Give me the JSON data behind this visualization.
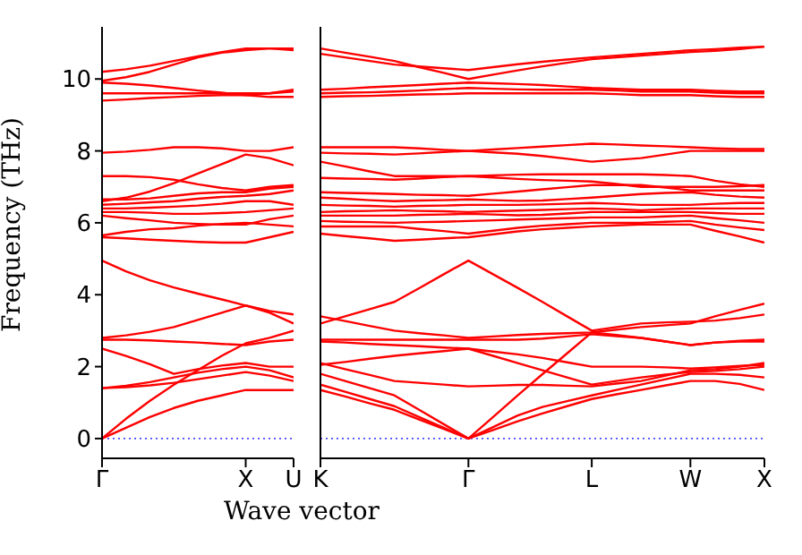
{
  "chart_data": [
    {
      "type": "line",
      "ylabel": "Frequency (THz)",
      "ylim": [
        -0.55,
        11.45
      ],
      "yticks": [
        0,
        2,
        4,
        6,
        8,
        10
      ],
      "marker": "none",
      "line_style": "solid",
      "ref_lines": [
        {
          "axis": "y",
          "value": 0,
          "label": null,
          "color": "#0000ff",
          "line_style": "dotted"
        }
      ],
      "categories": [
        "Γ",
        null,
        null,
        null,
        null,
        null,
        "X",
        null,
        "U"
      ],
      "series": [
        {
          "color": "#ff0000",
          "values": [
            0,
            0.3,
            0.6,
            0.85,
            1.05,
            1.2,
            1.35,
            1.35,
            1.35
          ]
        },
        {
          "color": "#ff0000",
          "values": [
            0,
            0.55,
            1.05,
            1.5,
            1.9,
            2.3,
            2.65,
            2.8,
            3.0
          ]
        },
        {
          "color": "#ff0000",
          "values": [
            1.4,
            1.43,
            1.48,
            1.55,
            1.65,
            1.75,
            1.85,
            1.75,
            1.6
          ]
        },
        {
          "color": "#ff0000",
          "values": [
            1.4,
            1.47,
            1.57,
            1.7,
            1.83,
            1.93,
            2.0,
            1.9,
            1.7
          ]
        },
        {
          "color": "#ff0000",
          "values": [
            2.5,
            2.3,
            2.07,
            1.8,
            1.93,
            2.03,
            2.1,
            2.0,
            2.0
          ]
        },
        {
          "color": "#ff0000",
          "values": [
            2.75,
            2.75,
            2.73,
            2.7,
            2.67,
            2.63,
            2.6,
            2.7,
            2.75
          ]
        },
        {
          "color": "#ff0000",
          "values": [
            2.8,
            2.87,
            2.97,
            3.1,
            3.3,
            3.5,
            3.7,
            3.5,
            3.2
          ]
        },
        {
          "color": "#ff0000",
          "values": [
            4.95,
            4.65,
            4.4,
            4.2,
            4.03,
            3.87,
            3.7,
            3.55,
            3.45
          ]
        },
        {
          "color": "#ff0000",
          "values": [
            5.6,
            5.57,
            5.53,
            5.5,
            5.47,
            5.45,
            5.45,
            5.6,
            5.75
          ]
        },
        {
          "color": "#ff0000",
          "values": [
            5.65,
            5.75,
            5.82,
            5.85,
            5.92,
            5.97,
            6.0,
            5.95,
            5.9
          ]
        },
        {
          "color": "#ff0000",
          "values": [
            6.2,
            6.13,
            6.07,
            6.0,
            5.97,
            5.95,
            5.95,
            6.1,
            6.2
          ]
        },
        {
          "color": "#ff0000",
          "values": [
            6.3,
            6.3,
            6.28,
            6.25,
            6.25,
            6.27,
            6.3,
            6.35,
            6.4
          ]
        },
        {
          "color": "#ff0000",
          "values": [
            6.4,
            6.4,
            6.42,
            6.45,
            6.48,
            6.53,
            6.6,
            6.6,
            6.5
          ]
        },
        {
          "color": "#ff0000",
          "values": [
            6.5,
            6.53,
            6.57,
            6.6,
            6.67,
            6.72,
            6.75,
            6.8,
            6.9
          ]
        },
        {
          "color": "#ff0000",
          "values": [
            6.65,
            6.65,
            6.68,
            6.75,
            6.82,
            6.85,
            6.85,
            6.95,
            7.0
          ]
        },
        {
          "color": "#ff0000",
          "values": [
            7.3,
            7.3,
            7.27,
            7.2,
            7.07,
            6.97,
            6.9,
            7.0,
            7.05
          ]
        },
        {
          "color": "#ff0000",
          "values": [
            6.6,
            6.7,
            6.87,
            7.1,
            7.37,
            7.63,
            7.9,
            7.8,
            7.6
          ]
        },
        {
          "color": "#ff0000",
          "values": [
            7.95,
            7.98,
            8.03,
            8.1,
            8.1,
            8.07,
            8.0,
            8.0,
            8.1
          ]
        },
        {
          "color": "#ff0000",
          "values": [
            9.4,
            9.43,
            9.47,
            9.5,
            9.53,
            9.55,
            9.55,
            9.5,
            9.5
          ]
        },
        {
          "color": "#ff0000",
          "values": [
            9.6,
            9.6,
            9.6,
            9.6,
            9.6,
            9.6,
            9.6,
            9.6,
            9.65
          ]
        },
        {
          "color": "#ff0000",
          "values": [
            9.9,
            9.87,
            9.82,
            9.75,
            9.68,
            9.62,
            9.55,
            9.6,
            9.7
          ]
        },
        {
          "color": "#ff0000",
          "values": [
            10.2,
            10.27,
            10.37,
            10.5,
            10.63,
            10.75,
            10.85,
            10.85,
            10.8
          ]
        },
        {
          "color": "#ff0000",
          "values": [
            9.95,
            10.05,
            10.2,
            10.4,
            10.6,
            10.73,
            10.8,
            10.85,
            10.85
          ]
        }
      ]
    },
    {
      "type": "line",
      "xlabel": "Wave vector",
      "ylim": [
        -0.55,
        11.45
      ],
      "yticks": [
        0,
        2,
        4,
        6,
        8,
        10
      ],
      "tick_labels": "x",
      "marker": "none",
      "line_style": "solid",
      "ref_lines": [
        {
          "axis": "y",
          "value": 0,
          "label": null,
          "color": "#0000ff",
          "line_style": "dotted"
        }
      ],
      "categories": [
        "K",
        null,
        null,
        null,
        null,
        null,
        "Γ",
        null,
        null,
        null,
        null,
        "L",
        null,
        null,
        null,
        "W",
        null,
        null,
        "X"
      ],
      "series": [
        {
          "color": "#ff0000",
          "values": [
            1.35,
            1.17,
            0.98,
            0.8,
            0.53,
            0.27,
            0,
            0.24,
            0.48,
            0.7,
            0.9,
            1.1,
            1.23,
            1.35,
            1.48,
            1.6,
            1.6,
            1.52,
            1.35
          ]
        },
        {
          "color": "#ff0000",
          "values": [
            1.5,
            1.3,
            1.1,
            0.9,
            0.6,
            0.3,
            0,
            0.32,
            0.64,
            0.88,
            1.04,
            1.2,
            1.35,
            1.5,
            1.65,
            1.8,
            1.8,
            1.77,
            1.7
          ]
        },
        {
          "color": "#ff0000",
          "values": [
            1.8,
            1.6,
            1.4,
            1.2,
            0.8,
            0.4,
            0,
            0.6,
            1.2,
            1.79,
            2.37,
            2.95,
            2.88,
            2.8,
            2.7,
            2.6,
            2.67,
            2.72,
            2.75
          ]
        },
        {
          "color": "#ff0000",
          "values": [
            2.1,
            1.93,
            1.77,
            1.6,
            1.55,
            1.5,
            1.45,
            1.47,
            1.49,
            1.49,
            1.47,
            1.45,
            1.53,
            1.6,
            1.75,
            1.9,
            1.93,
            2.0,
            2.1
          ]
        },
        {
          "color": "#ff0000",
          "values": [
            2.05,
            2.13,
            2.22,
            2.3,
            2.37,
            2.43,
            2.5,
            2.3,
            2.1,
            1.9,
            1.7,
            1.5,
            1.6,
            1.7,
            1.78,
            1.85,
            1.88,
            1.93,
            2.0
          ]
        },
        {
          "color": "#ff0000",
          "values": [
            2.7,
            2.67,
            2.63,
            2.6,
            2.57,
            2.53,
            2.5,
            2.42,
            2.34,
            2.24,
            2.12,
            2.0,
            2.0,
            2.0,
            1.98,
            1.95,
            1.98,
            2.02,
            2.05
          ]
        },
        {
          "color": "#ff0000",
          "values": [
            2.75,
            2.75,
            2.75,
            2.75,
            2.75,
            2.75,
            2.75,
            2.75,
            2.75,
            2.78,
            2.84,
            2.9,
            2.85,
            2.8,
            2.7,
            2.6,
            2.67,
            2.7,
            2.7
          ]
        },
        {
          "color": "#ff0000",
          "values": [
            3.4,
            3.27,
            3.13,
            3.0,
            2.93,
            2.87,
            2.8,
            2.84,
            2.88,
            2.91,
            2.93,
            2.95,
            3.03,
            3.1,
            3.15,
            3.2,
            3.4,
            3.58,
            3.75
          ]
        },
        {
          "color": "#ff0000",
          "values": [
            3.2,
            3.4,
            3.6,
            3.8,
            4.18,
            4.57,
            4.95,
            4.57,
            4.19,
            3.8,
            3.4,
            3.0,
            3.1,
            3.2,
            3.23,
            3.25,
            3.28,
            3.35,
            3.45
          ]
        },
        {
          "color": "#ff0000",
          "values": [
            5.7,
            5.63,
            5.57,
            5.5,
            5.53,
            5.57,
            5.6,
            5.68,
            5.76,
            5.82,
            5.86,
            5.9,
            5.93,
            5.95,
            5.95,
            5.95,
            5.78,
            5.62,
            5.45
          ]
        },
        {
          "color": "#ff0000",
          "values": [
            5.9,
            5.9,
            5.9,
            5.9,
            5.83,
            5.77,
            5.7,
            5.78,
            5.86,
            5.92,
            5.96,
            6.0,
            6.0,
            6.0,
            6.03,
            6.05,
            5.95,
            5.87,
            5.8
          ]
        },
        {
          "color": "#ff0000",
          "values": [
            6.05,
            6.03,
            6.02,
            6.0,
            6.02,
            6.03,
            6.05,
            6.07,
            6.09,
            6.11,
            6.13,
            6.15,
            6.15,
            6.15,
            6.18,
            6.2,
            6.13,
            6.07,
            6.0
          ]
        },
        {
          "color": "#ff0000",
          "values": [
            6.2,
            6.2,
            6.2,
            6.2,
            6.22,
            6.23,
            6.25,
            6.23,
            6.21,
            6.22,
            6.26,
            6.3,
            6.3,
            6.3,
            6.3,
            6.3,
            6.27,
            6.25,
            6.25
          ]
        },
        {
          "color": "#ff0000",
          "values": [
            6.3,
            6.32,
            6.33,
            6.35,
            6.33,
            6.32,
            6.3,
            6.32,
            6.34,
            6.36,
            6.38,
            6.4,
            6.38,
            6.35,
            6.38,
            6.4,
            6.4,
            6.4,
            6.4
          ]
        },
        {
          "color": "#ff0000",
          "values": [
            6.5,
            6.48,
            6.47,
            6.45,
            6.47,
            6.48,
            6.5,
            6.5,
            6.5,
            6.51,
            6.53,
            6.55,
            6.53,
            6.5,
            6.5,
            6.5,
            6.53,
            6.55,
            6.55
          ]
        },
        {
          "color": "#ff0000",
          "values": [
            6.7,
            6.67,
            6.63,
            6.6,
            6.62,
            6.63,
            6.65,
            6.63,
            6.61,
            6.62,
            6.66,
            6.7,
            6.75,
            6.8,
            6.83,
            6.85,
            6.78,
            6.73,
            6.7
          ]
        },
        {
          "color": "#ff0000",
          "values": [
            6.85,
            6.83,
            6.82,
            6.8,
            6.78,
            6.77,
            6.75,
            6.81,
            6.87,
            6.93,
            6.99,
            7.05,
            7.05,
            7.05,
            6.98,
            6.9,
            6.9,
            6.9,
            6.9
          ]
        },
        {
          "color": "#ff0000",
          "values": [
            7.25,
            7.23,
            7.22,
            7.2,
            7.23,
            7.27,
            7.3,
            7.26,
            7.22,
            7.19,
            7.17,
            7.15,
            7.08,
            7.0,
            7.0,
            7.0,
            7.0,
            7.02,
            7.05
          ]
        },
        {
          "color": "#ff0000",
          "values": [
            7.7,
            7.57,
            7.43,
            7.3,
            7.3,
            7.3,
            7.3,
            7.32,
            7.34,
            7.35,
            7.35,
            7.35,
            7.35,
            7.35,
            7.33,
            7.3,
            7.17,
            7.07,
            7.0
          ]
        },
        {
          "color": "#ff0000",
          "values": [
            7.95,
            7.93,
            7.92,
            7.9,
            7.93,
            7.97,
            8.0,
            7.96,
            7.92,
            7.86,
            7.78,
            7.7,
            7.75,
            7.8,
            7.9,
            8.0,
            8.0,
            8.0,
            8.0
          ]
        },
        {
          "color": "#ff0000",
          "values": [
            8.1,
            8.1,
            8.1,
            8.1,
            8.07,
            8.03,
            8.0,
            8.04,
            8.08,
            8.12,
            8.16,
            8.2,
            8.18,
            8.15,
            8.13,
            8.1,
            8.07,
            8.05,
            8.05
          ]
        },
        {
          "color": "#ff0000",
          "values": [
            9.5,
            9.52,
            9.53,
            9.55,
            9.57,
            9.58,
            9.6,
            9.6,
            9.6,
            9.6,
            9.6,
            9.6,
            9.58,
            9.55,
            9.55,
            9.55,
            9.52,
            9.5,
            9.5
          ]
        },
        {
          "color": "#ff0000",
          "values": [
            9.6,
            9.62,
            9.63,
            9.65,
            9.68,
            9.72,
            9.75,
            9.73,
            9.71,
            9.7,
            9.7,
            9.7,
            9.68,
            9.65,
            9.65,
            9.65,
            9.62,
            9.6,
            9.6
          ]
        },
        {
          "color": "#ff0000",
          "values": [
            9.7,
            9.73,
            9.77,
            9.8,
            9.83,
            9.87,
            9.9,
            9.88,
            9.86,
            9.83,
            9.79,
            9.75,
            9.73,
            9.7,
            9.7,
            9.7,
            9.67,
            9.65,
            9.65
          ]
        },
        {
          "color": "#ff0000",
          "values": [
            10.7,
            10.6,
            10.5,
            10.4,
            10.35,
            10.3,
            10.25,
            10.33,
            10.41,
            10.48,
            10.54,
            10.6,
            10.65,
            10.7,
            10.75,
            10.8,
            10.83,
            10.87,
            10.9
          ]
        },
        {
          "color": "#ff0000",
          "values": [
            10.85,
            10.73,
            10.62,
            10.5,
            10.33,
            10.17,
            10.0,
            10.12,
            10.24,
            10.35,
            10.45,
            10.55,
            10.6,
            10.65,
            10.7,
            10.75,
            10.78,
            10.83,
            10.9
          ]
        }
      ]
    }
  ]
}
